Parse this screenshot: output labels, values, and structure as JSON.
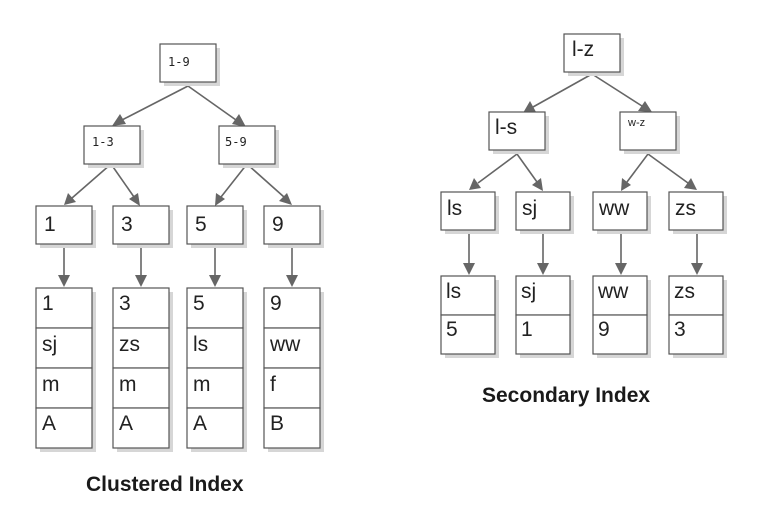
{
  "clustered": {
    "root": "1-9",
    "level1": [
      "1-3",
      "5-9"
    ],
    "leaves": [
      "1",
      "3",
      "5",
      "9"
    ],
    "records": [
      [
        "1",
        "sj",
        "m",
        "A"
      ],
      [
        "3",
        "zs",
        "m",
        "A"
      ],
      [
        "5",
        "ls",
        "m",
        "A"
      ],
      [
        "9",
        "ww",
        "f",
        "B"
      ]
    ],
    "caption": "Clustered Index"
  },
  "secondary": {
    "root": "l-z",
    "level1": [
      "l-s",
      "w-z"
    ],
    "leaves": [
      "ls",
      "sj",
      "ww",
      "zs"
    ],
    "records": [
      [
        "ls",
        "5"
      ],
      [
        "sj",
        "1"
      ],
      [
        "ww",
        "9"
      ],
      [
        "zs",
        "3"
      ]
    ],
    "caption": "Secondary Index"
  }
}
